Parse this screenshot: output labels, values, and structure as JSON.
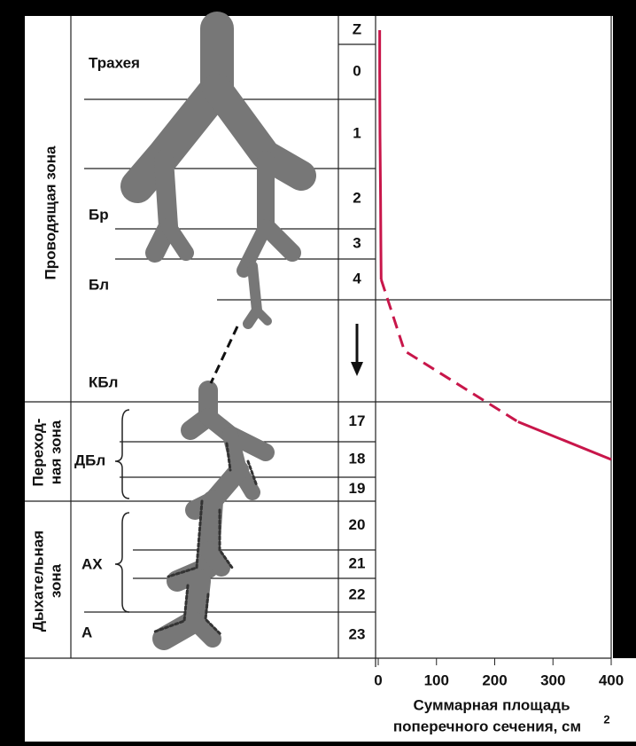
{
  "zones": [
    "Проводящая зона",
    "Переход-",
    "ная зона",
    "Дыхательная",
    "зона"
  ],
  "structures": [
    "Трахея",
    "Бр",
    "Бл",
    "КБл",
    "ДБл",
    "АХ",
    "А"
  ],
  "generations": [
    "Z",
    "0",
    "1",
    "2",
    "3",
    "4",
    null,
    "17",
    "18",
    "19",
    "20",
    "21",
    "22",
    "23"
  ],
  "chart_data": {
    "type": "line",
    "x_label": [
      "Суммарная площадь",
      "поперечного сечения, см"
    ],
    "x_label_sup": "2",
    "xlim": [
      0,
      400
    ],
    "xticks": [
      0,
      100,
      200,
      300,
      400
    ],
    "color": "#c8164a",
    "dashed_from": 5,
    "dashed_to": 7,
    "values": [
      2.5,
      2.5,
      3,
      4,
      4.5,
      5,
      45,
      240,
      400,
      null,
      null,
      null,
      null,
      null
    ]
  }
}
